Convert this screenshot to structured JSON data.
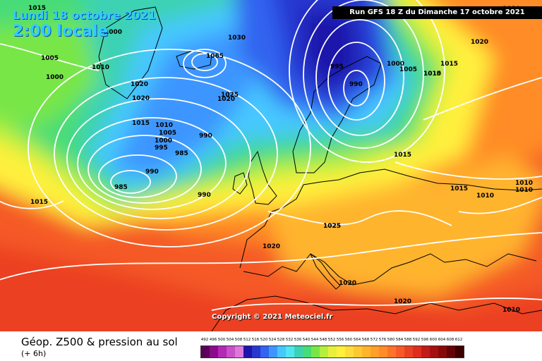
{
  "header": {
    "date": "Lundi 18 octobre 2021",
    "time": "2:00 locale",
    "run": "Run GFS 18 Z du Dimanche 17 octobre 2021"
  },
  "copyright": "Copyright © 2021 Meteociel.fr",
  "footer": {
    "title": "Géop. Z500 & pression au sol",
    "subtitle": "(+ 6h)"
  },
  "scale": {
    "labels": [
      "492",
      "496",
      "500",
      "504",
      "508",
      "512",
      "516",
      "520",
      "524",
      "528",
      "532",
      "536",
      "540",
      "544",
      "548",
      "552",
      "556",
      "560",
      "564",
      "568",
      "572",
      "576",
      "580",
      "584",
      "588",
      "592",
      "596",
      "600",
      "604",
      "608",
      "612"
    ],
    "colors": [
      "#5a005a",
      "#8c0a8c",
      "#b428b4",
      "#c850c8",
      "#dc78dc",
      "#1e14aa",
      "#2837d2",
      "#3264f0",
      "#3c96ff",
      "#46c8ff",
      "#50e6f0",
      "#3cd2b4",
      "#46dc78",
      "#78e646",
      "#b4f03c",
      "#e6f03c",
      "#fff03c",
      "#ffdc3c",
      "#ffc832",
      "#ffb42d",
      "#ffa028",
      "#ff8c28",
      "#ff7328",
      "#f55a28",
      "#eb4123",
      "#dc2d1e",
      "#c31919",
      "#a50f0f",
      "#870a0a",
      "#640505",
      "#3c0000"
    ]
  },
  "pressure_labels": [
    "1015",
    "1005",
    "1010",
    "1000",
    "1020",
    "1020",
    "1015",
    "1010",
    "1005",
    "1000",
    "995",
    "985",
    "990",
    "985",
    "990",
    "990",
    "1030",
    "1065",
    "1025",
    "1020",
    "1000",
    "995",
    "990",
    "1000",
    "1005",
    "1010",
    "1015",
    "1020",
    "1025",
    "1015",
    "1015",
    "1010",
    "1010",
    "1015",
    "1025",
    "1020",
    "1020",
    "1020",
    "1010",
    "1015",
    "1010",
    "1010"
  ]
}
